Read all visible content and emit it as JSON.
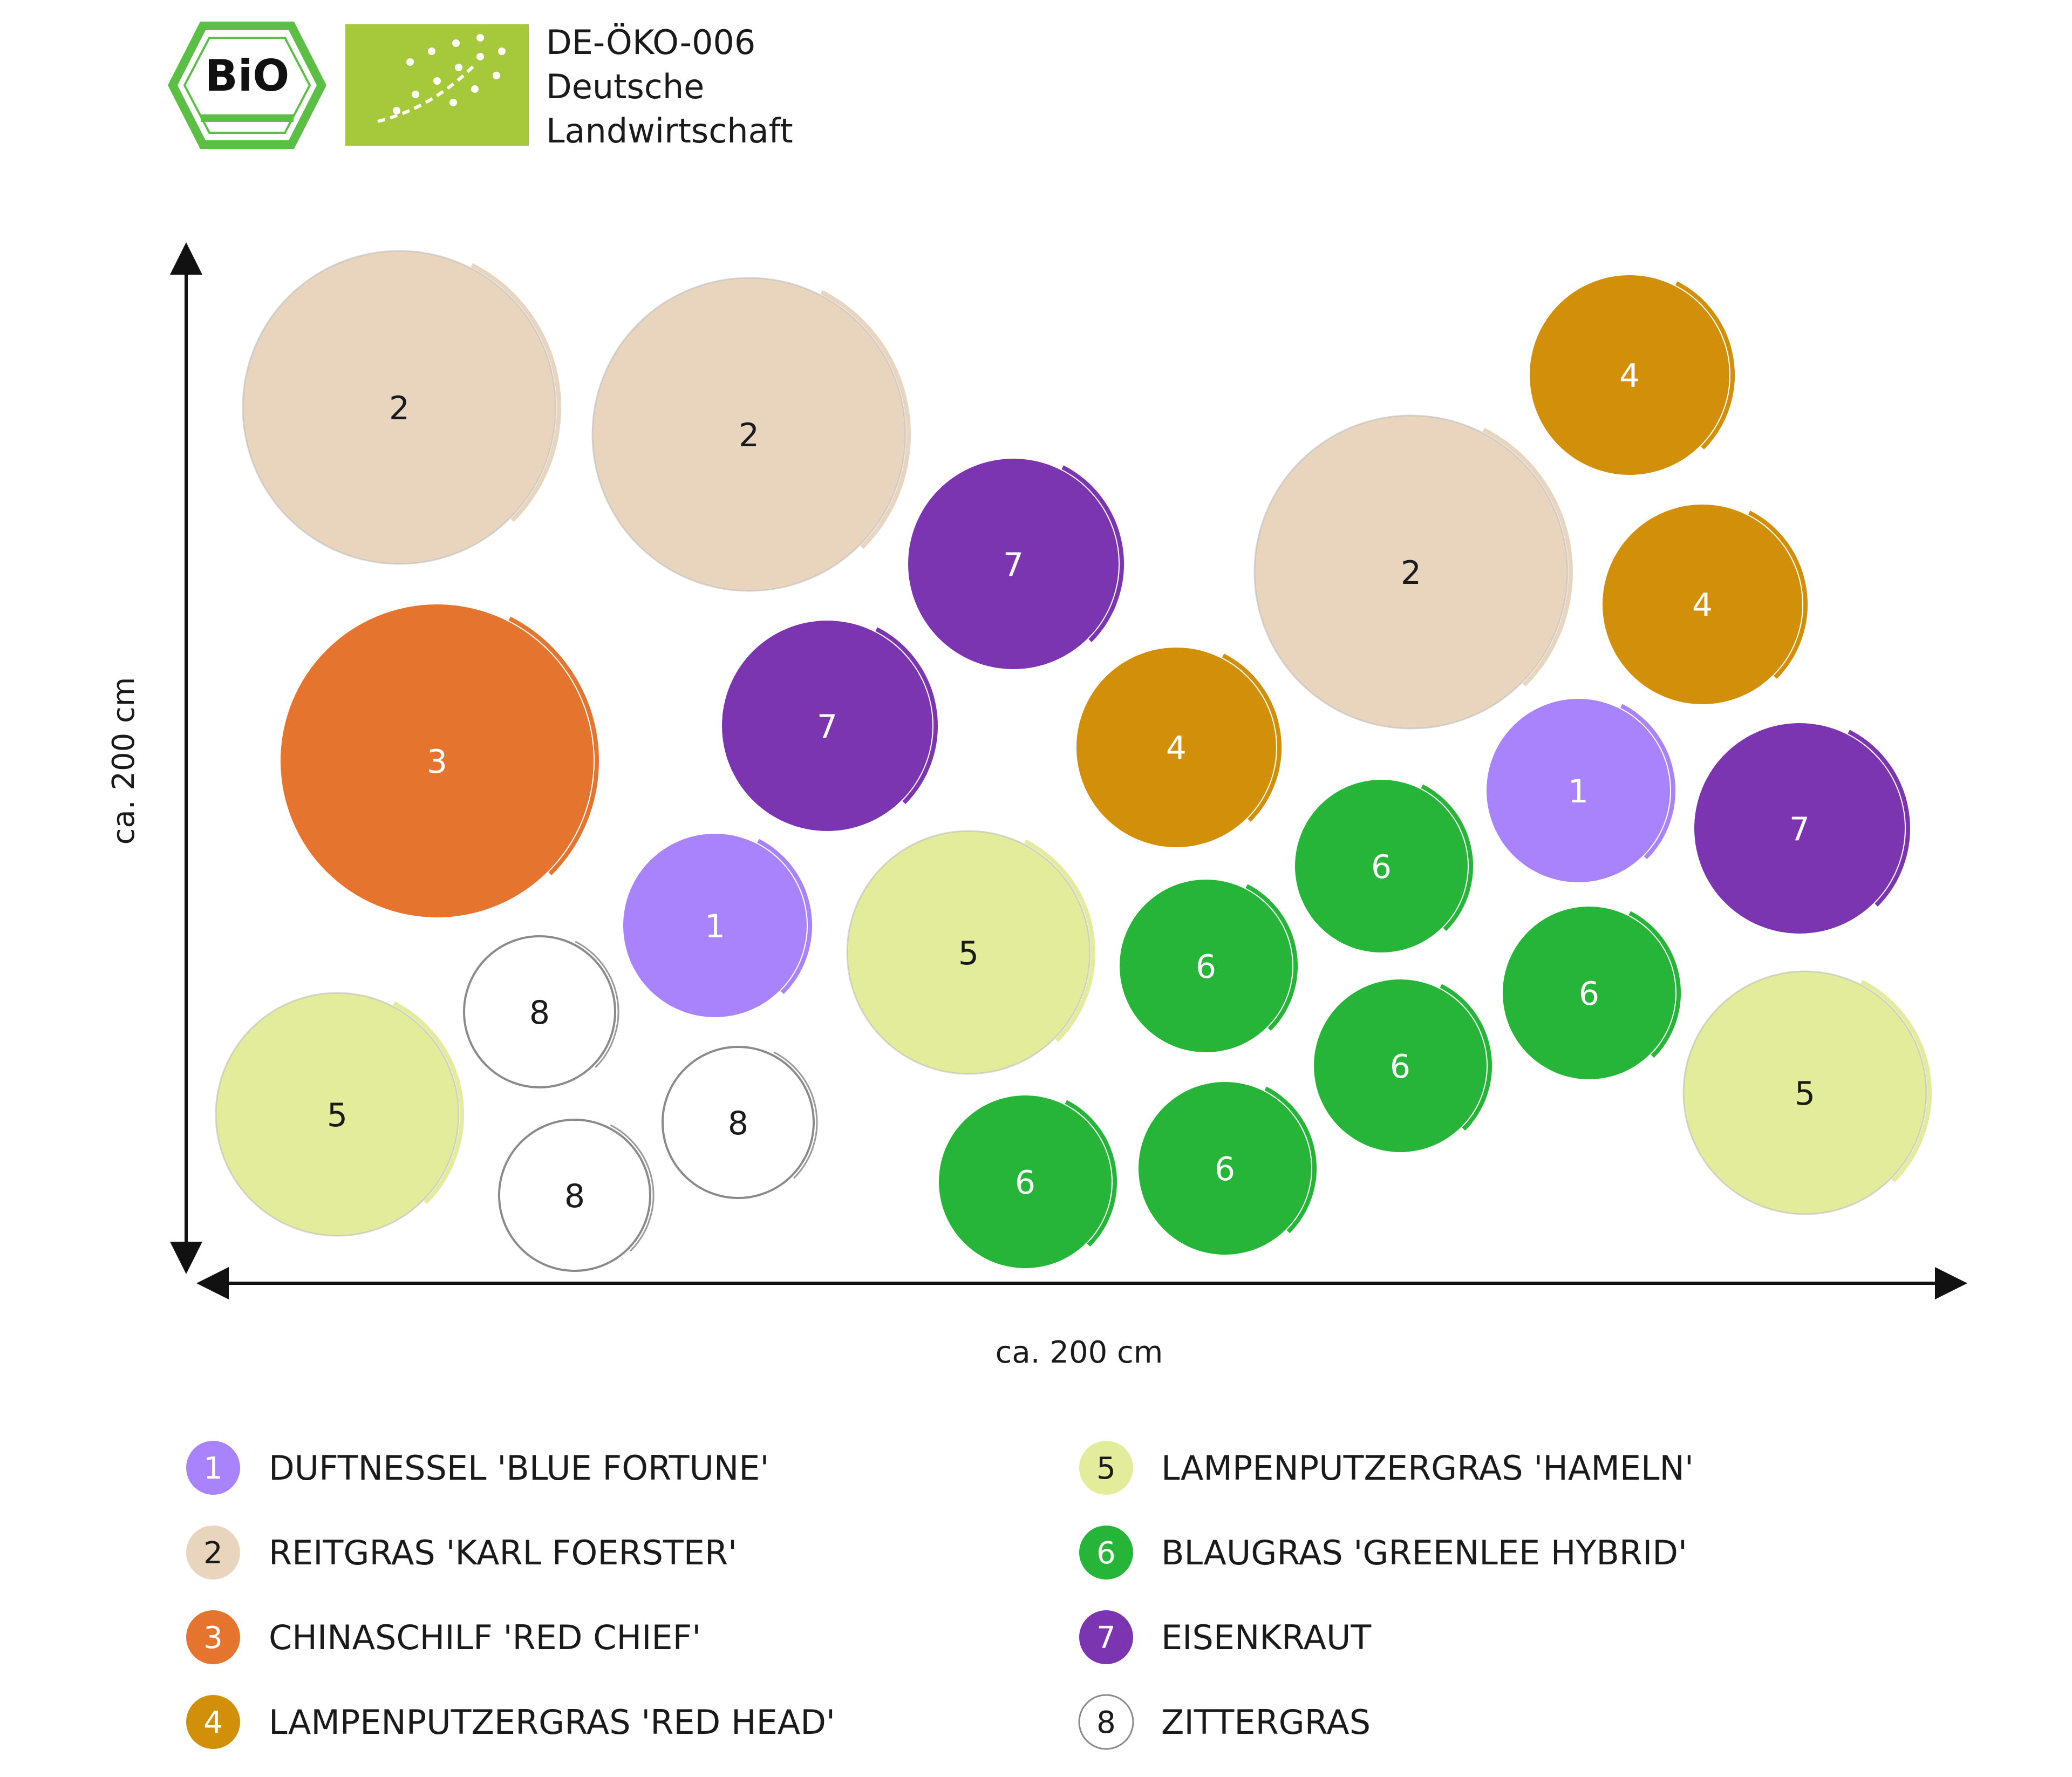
{
  "header": {
    "bio_logo_text": "BiO",
    "certification_lines": [
      "DE-ÖKO-006",
      "Deutsche",
      "Landwirtschaft"
    ]
  },
  "diagram": {
    "y_dimension_label": "ca. 200 cm",
    "x_dimension_label": "ca. 200 cm"
  },
  "plant_types": [
    {
      "number": "1",
      "name": "DUFTNESSEL 'BLUE FORTUNE'",
      "color": "#A883FB",
      "text_color": "#ffffff"
    },
    {
      "number": "2",
      "name": "REITGRAS 'KARL FOERSTER'",
      "color": "#E9D5BD",
      "text_color": "#1a1a1a"
    },
    {
      "number": "3",
      "name": "CHINASCHILF 'RED CHIEF'",
      "color": "#E5742F",
      "text_color": "#ffffff"
    },
    {
      "number": "4",
      "name": "LAMPENPUTZERGRAS 'RED HEAD'",
      "color": "#D28F0A",
      "text_color": "#ffffff"
    },
    {
      "number": "5",
      "name": "LAMPENPUTZERGRAS 'HAMELN'",
      "color": "#E2EC9A",
      "text_color": "#1a1a1a"
    },
    {
      "number": "6",
      "name": "BLAUGRAS 'GREENLEE HYBRID'",
      "color": "#26B538",
      "text_color": "#ffffff"
    },
    {
      "number": "7",
      "name": "EISENKRAUT",
      "color": "#7B35B1",
      "text_color": "#ffffff"
    },
    {
      "number": "8",
      "name": "ZITTERGRAS",
      "color": "#ffffff",
      "text_color": "#1a1a1a"
    }
  ]
}
